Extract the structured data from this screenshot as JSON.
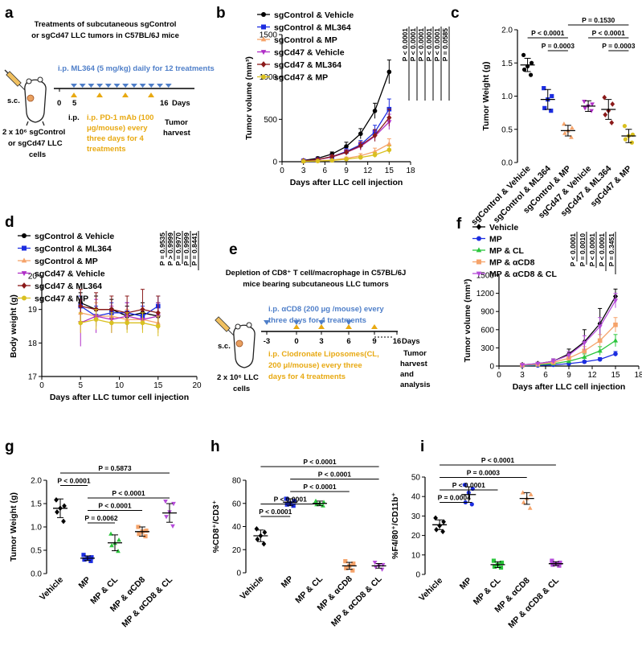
{
  "colors": {
    "black": "#000000",
    "blue": "#1c2de0",
    "orange": "#f5a36a",
    "purple": "#b02fc7",
    "darkred": "#8b1a1a",
    "yellow": "#d9c020",
    "green": "#2bc63c",
    "violet": "#b54bd9",
    "ml364_blue": "#4f7fc9",
    "pd1_gold": "#e8a912"
  },
  "panel_labels": {
    "a": "a",
    "b": "b",
    "c": "c",
    "d": "d",
    "e": "e",
    "f": "f",
    "g": "g",
    "h": "h",
    "i": "i"
  },
  "panel_a": {
    "title_line1": "Treatments of subcutaneous sgControl",
    "title_line2": "or sgCd47 LLC tumors in C57BL/6J mice",
    "ml364_text": "i.p. ML364 (5 mg/kg) daily for 12 treatments",
    "sc": "s.c.",
    "tick_start": "0",
    "tick_5": "5",
    "tick_16": "16",
    "days": "Days",
    "pd1_line1": "i.p. PD-1 mAb (100",
    "pd1_line2": "μg/mouse) every",
    "pd1_line3": "three days for 4",
    "pd1_line4": "treatments",
    "harvest_line1": "Tumor",
    "harvest_line2": "harvest",
    "cells_line1": "2 x 10⁶ sgControl",
    "cells_line2": "or sgCd47 LLC",
    "cells_line3": "cells"
  },
  "panel_e": {
    "title_line1": "Depletion of CD8⁺ T cell/macrophage in C57BL/6J",
    "title_line2": "mice bearing subcutaneous LLC tumors",
    "cd8_line1": "i.p. αCD8 (200 μg /mouse) every",
    "cd8_line2": "three days for 4 treatments",
    "sc": "s.c.",
    "ticks": [
      "-3",
      "0",
      "3",
      "6",
      "9",
      "16"
    ],
    "days": "Days",
    "harvest_line1": "Tumor",
    "harvest_line2": "harvest",
    "harvest_line3": "and",
    "harvest_line4": "analysis",
    "cl_line1": "i.p. Clodronate Liposomes(CL,",
    "cl_line2": "200 μl/mouse) every three",
    "cl_line3": "days for 4 treatments",
    "cells_line1": "2 x 10⁶ LLC",
    "cells_line2": "cells"
  },
  "chart_data": [
    {
      "id": "b",
      "type": "line",
      "xlabel": "Days after LLC cell injection",
      "ylabel": "Tumor volume (mm³)",
      "xlim": [
        0,
        18
      ],
      "ylim": [
        0,
        1500
      ],
      "xticks": [
        0,
        3,
        6,
        9,
        12,
        15,
        18
      ],
      "yticks": [
        0,
        500,
        1000,
        1500
      ],
      "legend": [
        "sgControl & Vehicle",
        "sgControl & ML364",
        "sgControl & MP",
        "sgCd47 & Vehicle",
        "sgCd47 & ML364",
        "sgCd47 & MP"
      ],
      "x": [
        3,
        5,
        7,
        9,
        11,
        13,
        15
      ],
      "series": [
        {
          "name": "sgControl & Vehicle",
          "color": "#000000",
          "marker": "circle",
          "values": [
            15,
            40,
            90,
            180,
            330,
            600,
            1060
          ],
          "err": [
            10,
            15,
            25,
            50,
            60,
            90,
            140
          ]
        },
        {
          "name": "sgControl & ML364",
          "color": "#1c2de0",
          "marker": "square",
          "values": [
            10,
            25,
            60,
            120,
            200,
            350,
            620
          ],
          "err": [
            8,
            12,
            20,
            35,
            50,
            80,
            120
          ]
        },
        {
          "name": "sgControl & MP",
          "color": "#f5a36a",
          "marker": "triangle",
          "values": [
            5,
            10,
            20,
            40,
            70,
            120,
            210
          ],
          "err": [
            5,
            6,
            10,
            15,
            25,
            40,
            60
          ]
        },
        {
          "name": "sgCd47 & Vehicle",
          "color": "#b02fc7",
          "marker": "triangle-down",
          "values": [
            10,
            25,
            55,
            110,
            180,
            300,
            470
          ],
          "err": [
            8,
            12,
            20,
            30,
            45,
            60,
            90
          ]
        },
        {
          "name": "sgCd47 & ML364",
          "color": "#8b1a1a",
          "marker": "diamond",
          "values": [
            10,
            25,
            60,
            110,
            190,
            310,
            520
          ],
          "err": [
            8,
            12,
            20,
            30,
            45,
            70,
            100
          ]
        },
        {
          "name": "sgCd47 & MP",
          "color": "#d9c020",
          "marker": "circle",
          "values": [
            5,
            8,
            15,
            30,
            50,
            80,
            140
          ],
          "err": [
            4,
            5,
            8,
            12,
            20,
            30,
            45
          ]
        }
      ],
      "pvalues": [
        "P < 0.0001",
        "P < 0.0001",
        "P < 0.0001",
        "P < 0.0001",
        "P < 0.0001",
        "P = 0.0585"
      ]
    },
    {
      "id": "c",
      "type": "scatter",
      "ylabel": "Tumor Weight (g)",
      "ylim": [
        0,
        2.0
      ],
      "yticks": [
        0.0,
        0.5,
        1.0,
        1.5,
        2.0
      ],
      "categories": [
        "sgControl & Vehicle",
        "sgControl & ML364",
        "sgControl & MP",
        "sgCd47 & Vehicle",
        "sgCd47 & ML364",
        "sgCd47 & MP"
      ],
      "colors": [
        "#000000",
        "#1c2de0",
        "#f5a36a",
        "#b02fc7",
        "#8b1a1a",
        "#d9c020"
      ],
      "markers": [
        "circle",
        "square",
        "triangle",
        "triangle-down",
        "diamond",
        "circle"
      ],
      "means": [
        1.47,
        0.95,
        0.48,
        0.85,
        0.8,
        0.4
      ],
      "sd": [
        0.1,
        0.15,
        0.08,
        0.08,
        0.15,
        0.1
      ],
      "points": [
        [
          1.62,
          1.5,
          1.45,
          1.4,
          1.32
        ],
        [
          1.12,
          1.0,
          0.95,
          0.82,
          0.78
        ],
        [
          0.58,
          0.52,
          0.48,
          0.44,
          0.38
        ],
        [
          0.92,
          0.88,
          0.85,
          0.82,
          0.78
        ],
        [
          0.98,
          0.88,
          0.78,
          0.72,
          0.6
        ],
        [
          0.55,
          0.42,
          0.4,
          0.35,
          0.3
        ]
      ],
      "brackets": [
        {
          "label": "P < 0.0001",
          "from": 0,
          "to": 2,
          "level": 0
        },
        {
          "label": "P = 0.0003",
          "from": 1,
          "to": 2,
          "level": 1
        },
        {
          "label": "P = 0.1530",
          "from": 2,
          "to": 5,
          "level": -1
        },
        {
          "label": "P < 0.0001",
          "from": 3,
          "to": 5,
          "level": 0
        },
        {
          "label": "P = 0.0003",
          "from": 4,
          "to": 5,
          "level": 1
        }
      ]
    },
    {
      "id": "d",
      "type": "line",
      "xlabel": "Days after LLC tumor cell injection",
      "ylabel": "Body weight (g)",
      "xlim": [
        0,
        20
      ],
      "ylim": [
        17,
        20
      ],
      "xticks": [
        0,
        5,
        10,
        15,
        20
      ],
      "yticks": [
        17,
        18,
        19,
        20
      ],
      "legend": [
        "sgControl & Vehicle",
        "sgControl & ML364",
        "sgControl & MP",
        "sgCd47 & Vehicle",
        "sgCd47 & ML364",
        "sgCd47 & MP"
      ],
      "x": [
        5,
        7,
        9,
        11,
        13,
        15
      ],
      "series": [
        {
          "name": "sgControl & Vehicle",
          "color": "#000000",
          "marker": "circle",
          "values": [
            19.2,
            19.0,
            19.0,
            18.8,
            18.9,
            18.8
          ],
          "err": [
            0.3,
            0.4,
            0.3,
            0.3,
            0.3,
            0.4
          ]
        },
        {
          "name": "sgControl & ML364",
          "color": "#1c2de0",
          "marker": "square",
          "values": [
            19.1,
            18.8,
            18.9,
            18.9,
            18.8,
            19.1
          ],
          "err": [
            0.3,
            0.3,
            0.3,
            0.3,
            0.3,
            0.3
          ]
        },
        {
          "name": "sgControl & MP",
          "color": "#f5a36a",
          "marker": "triangle",
          "values": [
            18.9,
            18.8,
            18.8,
            18.7,
            18.7,
            18.6
          ],
          "err": [
            0.4,
            0.4,
            0.3,
            0.3,
            0.3,
            0.3
          ]
        },
        {
          "name": "sgCd47 & Vehicle",
          "color": "#b02fc7",
          "marker": "triangle-down",
          "values": [
            18.6,
            18.8,
            18.7,
            18.8,
            18.7,
            18.8
          ],
          "err": [
            0.7,
            0.5,
            0.4,
            0.4,
            0.3,
            0.4
          ]
        },
        {
          "name": "sgCd47 & ML364",
          "color": "#8b1a1a",
          "marker": "diamond",
          "values": [
            19.1,
            19.0,
            19.0,
            18.9,
            19.0,
            18.9
          ],
          "err": [
            0.5,
            0.5,
            0.4,
            0.5,
            0.6,
            0.5
          ]
        },
        {
          "name": "sgCd47 & MP",
          "color": "#d9c020",
          "marker": "circle",
          "values": [
            18.6,
            18.7,
            18.6,
            18.6,
            18.6,
            18.5
          ],
          "err": [
            0.3,
            0.3,
            0.3,
            0.3,
            0.3,
            0.3
          ]
        }
      ],
      "pvalues": [
        "P = 0.9535",
        "P > 0.9999",
        "P = 0.9970",
        "P = 0.9999",
        "P = 0.8441"
      ]
    },
    {
      "id": "f",
      "type": "line",
      "xlabel": "Days after LLC cell injection",
      "ylabel": "Tumor volume (mm³)",
      "xlim": [
        0,
        18
      ],
      "ylim": [
        0,
        1500
      ],
      "xticks": [
        0,
        3,
        6,
        9,
        12,
        15,
        18
      ],
      "yticks": [
        0,
        300,
        600,
        900,
        1200,
        1500
      ],
      "legend": [
        "Vehicle",
        "MP",
        "MP & CL",
        "MP & αCD8",
        "MP & αCD8 & CL"
      ],
      "x": [
        3,
        5,
        7,
        9,
        11,
        13,
        15
      ],
      "series": [
        {
          "name": "Vehicle",
          "color": "#000000",
          "marker": "diamond",
          "values": [
            20,
            40,
            80,
            200,
            400,
            700,
            1150
          ],
          "err": [
            10,
            20,
            40,
            80,
            200,
            250,
            120
          ]
        },
        {
          "name": "MP",
          "color": "#1c2de0",
          "marker": "circle",
          "values": [
            5,
            10,
            20,
            40,
            70,
            110,
            200
          ],
          "err": [
            3,
            5,
            8,
            15,
            20,
            30,
            40
          ]
        },
        {
          "name": "MP & CL",
          "color": "#2bc63c",
          "marker": "triangle",
          "values": [
            10,
            20,
            40,
            80,
            150,
            250,
            420
          ],
          "err": [
            5,
            10,
            15,
            30,
            50,
            70,
            100
          ]
        },
        {
          "name": "MP & αCD8",
          "color": "#f5a36a",
          "marker": "square",
          "values": [
            15,
            30,
            60,
            130,
            250,
            420,
            680
          ],
          "err": [
            8,
            15,
            25,
            40,
            70,
            100,
            120
          ]
        },
        {
          "name": "MP & αCD8 & CL",
          "color": "#b54bd9",
          "marker": "triangle-down",
          "values": [
            20,
            40,
            80,
            180,
            380,
            650,
            1080
          ],
          "err": [
            10,
            20,
            40,
            60,
            120,
            150,
            120
          ]
        }
      ],
      "pvalues": [
        "P < 0.0001",
        "P = 0.0010",
        "P < 0.0001",
        "P < 0.0001",
        "P = 0.3451"
      ]
    },
    {
      "id": "g",
      "type": "scatter",
      "ylabel": "Tumor Weight (g)",
      "ylim": [
        0,
        2.0
      ],
      "yticks": [
        0.0,
        0.5,
        1.0,
        1.5,
        2.0
      ],
      "categories": [
        "Vehicle",
        "MP",
        "MP & CL",
        "MP & αCD8",
        "MP & αCD8 & CL"
      ],
      "colors": [
        "#000000",
        "#1c2de0",
        "#2bc63c",
        "#f5a36a",
        "#b54bd9"
      ],
      "markers": [
        "diamond",
        "square",
        "triangle",
        "square",
        "triangle-down"
      ],
      "means": [
        1.4,
        0.33,
        0.66,
        0.9,
        1.3
      ],
      "sd": [
        0.2,
        0.05,
        0.17,
        0.1,
        0.2
      ],
      "points": [
        [
          1.58,
          1.45,
          1.4,
          1.32,
          1.12
        ],
        [
          0.4,
          0.35,
          0.33,
          0.3,
          0.27
        ],
        [
          0.85,
          0.72,
          0.65,
          0.6,
          0.48
        ],
        [
          1.0,
          0.92,
          0.9,
          0.85,
          0.8
        ],
        [
          1.55,
          1.5,
          1.32,
          1.22,
          1.02
        ]
      ],
      "brackets": [
        {
          "label": "P = 0.5873",
          "from": 0,
          "to": 4,
          "level": 0
        },
        {
          "label": "P < 0.0001",
          "from": 0,
          "to": 1,
          "level": 1
        },
        {
          "label": "P < 0.0001",
          "from": 1,
          "to": 4,
          "level": 2
        },
        {
          "label": "P < 0.0001",
          "from": 1,
          "to": 3,
          "level": 3
        },
        {
          "label": "P = 0.0062",
          "from": 1,
          "to": 2,
          "level": 4
        }
      ]
    },
    {
      "id": "h",
      "type": "scatter",
      "ylabel": "%CD8⁺/CD3⁺",
      "ylim": [
        0,
        80
      ],
      "yticks": [
        0,
        20,
        40,
        60,
        80
      ],
      "categories": [
        "Vehicle",
        "MP",
        "MP & CL",
        "MP & αCD8",
        "MP & αCD8 & CL"
      ],
      "colors": [
        "#000000",
        "#1c2de0",
        "#2bc63c",
        "#f5a36a",
        "#b54bd9"
      ],
      "markers": [
        "diamond",
        "square",
        "triangle",
        "square",
        "triangle-down"
      ],
      "means": [
        32,
        61,
        60,
        6,
        6
      ],
      "sd": [
        5,
        3,
        2,
        3,
        2
      ],
      "points": [
        [
          38,
          35,
          32,
          29,
          25
        ],
        [
          64,
          62,
          60,
          59,
          58
        ],
        [
          62,
          61,
          60,
          59,
          58
        ],
        [
          10,
          8,
          6,
          4,
          2
        ],
        [
          9,
          7,
          6,
          5,
          3
        ]
      ],
      "brackets": [
        {
          "label": "P < 0.0001",
          "from": 0,
          "to": 4,
          "level": 0
        },
        {
          "label": "P < 0.0001",
          "from": 1,
          "to": 4,
          "level": 1
        },
        {
          "label": "P < 0.0001",
          "from": 1,
          "to": 3,
          "level": 2
        },
        {
          "label": "P < 0.0001",
          "from": 0,
          "to": 2,
          "level": 3
        },
        {
          "label": "P < 0.0001",
          "from": 0,
          "to": 1,
          "level": 4
        }
      ]
    },
    {
      "id": "i",
      "type": "scatter",
      "ylabel": "%F4/80⁺/CD11b⁺",
      "ylim": [
        0,
        50
      ],
      "yticks": [
        0,
        10,
        20,
        30,
        40,
        50
      ],
      "categories": [
        "Vehicle",
        "MP",
        "MP & CL",
        "MP & αCD8",
        "MP & αCD8 & CL"
      ],
      "colors": [
        "#000000",
        "#1c2de0",
        "#2bc63c",
        "#f5a36a",
        "#b54bd9"
      ],
      "markers": [
        "diamond",
        "circle",
        "square",
        "triangle",
        "square"
      ],
      "means": [
        25.5,
        41,
        5,
        39,
        5.5
      ],
      "sd": [
        2.5,
        4,
        1.5,
        3,
        1
      ],
      "points": [
        [
          29,
          27,
          25,
          23,
          22
        ],
        [
          46,
          44,
          42,
          37,
          36
        ],
        [
          7,
          6,
          5,
          4,
          3.5
        ],
        [
          42,
          41,
          39,
          37,
          34
        ],
        [
          7,
          6,
          5.5,
          5,
          4.5
        ]
      ],
      "brackets": [
        {
          "label": "P < 0.0001",
          "from": 0,
          "to": 4,
          "level": 0
        },
        {
          "label": "P = 0.0003",
          "from": 0,
          "to": 3,
          "level": 1
        },
        {
          "label": "P < 0.0001",
          "from": 0,
          "to": 2,
          "level": 2
        },
        {
          "label": "P = 0.0004",
          "from": 0,
          "to": 1,
          "level": 3
        }
      ]
    }
  ]
}
